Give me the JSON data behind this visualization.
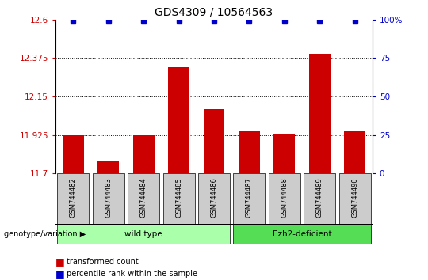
{
  "title": "GDS4309 / 10564563",
  "samples": [
    "GSM744482",
    "GSM744483",
    "GSM744484",
    "GSM744485",
    "GSM744486",
    "GSM744487",
    "GSM744488",
    "GSM744489",
    "GSM744490"
  ],
  "bar_values": [
    11.925,
    11.775,
    11.925,
    12.32,
    12.075,
    11.95,
    11.93,
    12.4,
    11.95
  ],
  "percentile_values": [
    100,
    100,
    100,
    100,
    100,
    100,
    100,
    100,
    100
  ],
  "ylim_left": [
    11.7,
    12.6
  ],
  "ylim_right": [
    0,
    100
  ],
  "yticks_left": [
    11.7,
    11.925,
    12.15,
    12.375,
    12.6
  ],
  "yticks_right": [
    0,
    25,
    50,
    75,
    100
  ],
  "bar_color": "#cc0000",
  "dot_color": "#0000cc",
  "bar_width": 0.6,
  "group1_label": "wild type",
  "group2_label": "Ezh2-deficient",
  "group1_indices": [
    0,
    1,
    2,
    3,
    4
  ],
  "group2_indices": [
    5,
    6,
    7,
    8
  ],
  "group1_color": "#aaffaa",
  "group2_color": "#55dd55",
  "genotype_label": "genotype/variation",
  "legend_bar_label": "transformed count",
  "legend_dot_label": "percentile rank within the sample",
  "title_fontsize": 10,
  "axis_label_color_left": "#cc0000",
  "axis_label_color_right": "#0000cc",
  "background_color": "#ffffff",
  "tick_label_bg": "#cccccc"
}
